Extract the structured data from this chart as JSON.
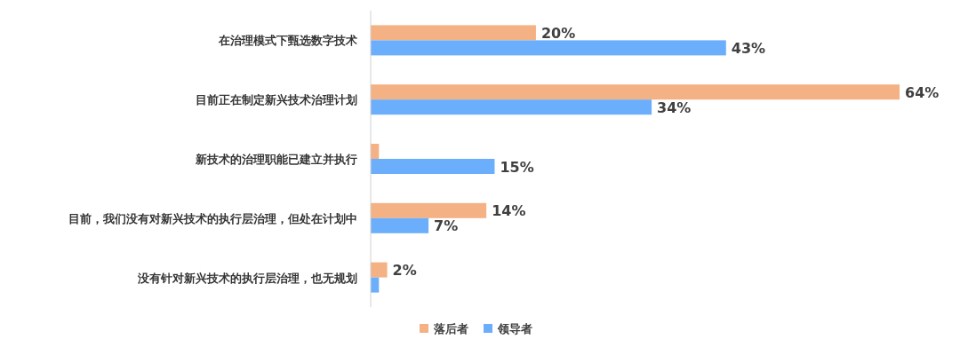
{
  "chart_data": {
    "type": "bar",
    "orientation": "horizontal",
    "legend": "bottom",
    "categories": [
      "在治理模式下甄选数字技术",
      "目前正在制定新兴技术治理计划",
      "新技术的治理职能已建立并执行",
      "目前，我们没有对新兴技术的执行层治理，但处在计划中",
      "没有针对新兴技术的执行层治理，也无规划"
    ],
    "series": [
      {
        "name": "落后者",
        "color": "#f4b183",
        "values": [
          20,
          64,
          1,
          14,
          2
        ],
        "value_labels": [
          "20%",
          "64%",
          null,
          "14%",
          "2%"
        ]
      },
      {
        "name": "领导者",
        "color": "#6aaefc",
        "values": [
          43,
          34,
          15,
          7,
          1
        ],
        "value_labels": [
          "43%",
          "34%",
          "15%",
          "7%",
          null
        ]
      }
    ]
  }
}
